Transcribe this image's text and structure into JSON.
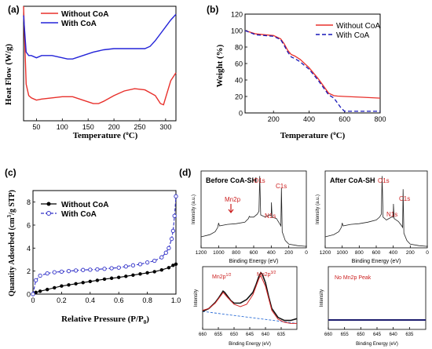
{
  "panels": {
    "a": {
      "label": "(a)",
      "ylabel": "Heat Flow (W/g)",
      "xlabel_main": "Temperature (",
      "xlabel_sup": "o",
      "xlabel_end": "C)",
      "legend": [
        "Without CoA",
        "With CoA"
      ]
    },
    "b": {
      "label": "(b)",
      "ylabel": "Weight (%)",
      "xlabel_main": "Temperature (",
      "xlabel_sup": "o",
      "xlabel_end": "C)",
      "legend": [
        "Without CoA",
        "With CoA"
      ]
    },
    "c": {
      "label": "(c)",
      "ylabel_main": "Quantity Adsorbed (cm",
      "ylabel_sup": "3",
      "ylabel_end": "/g STP)",
      "xlabel_main": "Relative Pressure (P/P",
      "xlabel_sub": "0",
      "xlabel_end": ")",
      "legend": [
        "Without CoA",
        "With CoA"
      ]
    },
    "d": {
      "label": "(d)",
      "before_title": "Before CoA-SH",
      "after_title": "After CoA-SH",
      "ylabel": "Intensity (a.u.)",
      "xlabel": "Binding Energy (eV)",
      "peaks_before": [
        "Mn2p",
        "O1s",
        "N1s",
        "C1s"
      ],
      "peaks_after": [
        "O1s",
        "N1s",
        "C1s"
      ],
      "mn_labels": [
        "Mn2p",
        "1/2",
        "Mn2p",
        "3/2"
      ],
      "no_peak": "No Mn2p Peak",
      "hr_ylabel": "Intensity",
      "hr_xlabel": "Binding Energy (eV)"
    }
  },
  "chart_data": [
    {
      "id": "a",
      "type": "line",
      "xlim": [
        25,
        320
      ],
      "xticks": [
        50,
        100,
        150,
        200,
        250,
        300
      ],
      "yticks": [],
      "colors": [
        "#e8302b",
        "#2323d8"
      ],
      "series": [
        {
          "name": "Without CoA",
          "x": [
            25,
            30,
            35,
            40,
            50,
            60,
            80,
            100,
            120,
            140,
            160,
            170,
            180,
            200,
            220,
            240,
            260,
            280,
            290,
            296,
            300,
            310,
            320
          ],
          "y": [
            1.0,
            0.32,
            0.22,
            0.2,
            0.18,
            0.19,
            0.2,
            0.21,
            0.21,
            0.18,
            0.15,
            0.15,
            0.17,
            0.22,
            0.26,
            0.28,
            0.27,
            0.22,
            0.15,
            0.14,
            0.2,
            0.35,
            0.42
          ]
        },
        {
          "name": "With CoA",
          "x": [
            25,
            30,
            35,
            40,
            50,
            60,
            80,
            100,
            110,
            120,
            140,
            160,
            180,
            200,
            220,
            240,
            260,
            270,
            280,
            290,
            300,
            310,
            320
          ],
          "y": [
            0.92,
            0.6,
            0.57,
            0.57,
            0.55,
            0.57,
            0.57,
            0.55,
            0.54,
            0.54,
            0.57,
            0.6,
            0.62,
            0.63,
            0.63,
            0.63,
            0.63,
            0.65,
            0.7,
            0.76,
            0.82,
            0.88,
            0.93
          ]
        }
      ]
    },
    {
      "id": "b",
      "type": "line",
      "xlim": [
        40,
        800
      ],
      "ylim": [
        0,
        120
      ],
      "xticks": [
        200,
        400,
        600,
        800
      ],
      "yticks": [
        0,
        20,
        40,
        60,
        80,
        100,
        120
      ],
      "colors": [
        "#e8302b",
        "#1717b8"
      ],
      "series": [
        {
          "name": "Without CoA",
          "x": [
            40,
            100,
            150,
            200,
            240,
            260,
            280,
            300,
            320,
            350,
            400,
            450,
            480,
            510,
            540,
            560,
            600,
            700,
            800
          ],
          "y": [
            100,
            96,
            95,
            94,
            90,
            84,
            76,
            71,
            69,
            65,
            55,
            42,
            33,
            24,
            21,
            20.5,
            20,
            19,
            18
          ]
        },
        {
          "name": "With CoA",
          "x": [
            40,
            100,
            150,
            200,
            240,
            260,
            280,
            300,
            320,
            350,
            400,
            450,
            480,
            510,
            540,
            560,
            580,
            600,
            700,
            800
          ],
          "y": [
            100,
            95,
            94,
            93,
            89,
            82,
            74,
            68,
            66,
            62,
            53,
            40,
            31,
            22,
            18,
            12,
            6,
            2,
            2,
            2
          ]
        }
      ]
    },
    {
      "id": "c",
      "type": "line",
      "xlim": [
        0,
        1
      ],
      "ylim": [
        0,
        9
      ],
      "xticks": [
        0,
        0.2,
        0.4,
        0.6,
        0.8,
        1.0
      ],
      "yticks": [
        0,
        2,
        4,
        6,
        8
      ],
      "colors": [
        "#000000",
        "#3030c8"
      ],
      "series": [
        {
          "name": "Without CoA",
          "x": [
            0,
            0.02,
            0.05,
            0.1,
            0.15,
            0.2,
            0.25,
            0.3,
            0.35,
            0.4,
            0.45,
            0.5,
            0.55,
            0.6,
            0.65,
            0.7,
            0.75,
            0.8,
            0.85,
            0.9,
            0.95,
            0.98,
            1.0
          ],
          "y": [
            0.0,
            0.15,
            0.25,
            0.4,
            0.55,
            0.7,
            0.8,
            0.9,
            1.0,
            1.1,
            1.2,
            1.3,
            1.38,
            1.45,
            1.55,
            1.65,
            1.75,
            1.85,
            1.95,
            2.1,
            2.3,
            2.5,
            2.6
          ]
        },
        {
          "name": "With CoA",
          "x": [
            0,
            0.02,
            0.05,
            0.1,
            0.15,
            0.2,
            0.25,
            0.3,
            0.35,
            0.4,
            0.45,
            0.5,
            0.55,
            0.6,
            0.65,
            0.7,
            0.75,
            0.8,
            0.85,
            0.9,
            0.93,
            0.95,
            0.97,
            0.98,
            0.99,
            1.0
          ],
          "y": [
            0.0,
            1.2,
            1.6,
            1.8,
            1.9,
            1.95,
            2.0,
            2.05,
            2.1,
            2.12,
            2.15,
            2.2,
            2.25,
            2.3,
            2.4,
            2.5,
            2.6,
            2.75,
            2.9,
            3.2,
            3.6,
            4.0,
            4.8,
            5.5,
            6.8,
            8.5
          ]
        }
      ]
    },
    {
      "id": "d-before",
      "type": "line",
      "xlim": [
        1200,
        0
      ],
      "xticks": [
        1200,
        1000,
        800,
        600,
        400,
        200,
        0
      ],
      "series": [
        {
          "x": [
            1200,
            1100,
            1040,
            1010,
            1000,
            990,
            900,
            800,
            700,
            660,
            650,
            642,
            600,
            560,
            540,
            531,
            520,
            470,
            420,
            400,
            398,
            390,
            340,
            300,
            290,
            284,
            275,
            240,
            200,
            100,
            0
          ],
          "y": [
            0.15,
            0.18,
            0.22,
            0.28,
            0.34,
            0.3,
            0.32,
            0.33,
            0.35,
            0.4,
            0.43,
            0.42,
            0.42,
            0.46,
            0.5,
            0.98,
            0.45,
            0.42,
            0.45,
            0.44,
            0.62,
            0.42,
            0.4,
            0.32,
            0.3,
            0.82,
            0.22,
            0.1,
            0.05,
            0.03,
            0.02
          ]
        }
      ]
    },
    {
      "id": "d-after",
      "type": "line",
      "xlim": [
        1200,
        0
      ],
      "xticks": [
        1200,
        1000,
        800,
        600,
        400,
        200,
        0
      ],
      "series": [
        {
          "x": [
            1200,
            1100,
            1040,
            1010,
            1000,
            990,
            900,
            800,
            700,
            600,
            560,
            540,
            531,
            520,
            480,
            420,
            400,
            398,
            390,
            340,
            300,
            290,
            284,
            275,
            240,
            200,
            100,
            0
          ],
          "y": [
            0.15,
            0.18,
            0.22,
            0.28,
            0.34,
            0.3,
            0.32,
            0.33,
            0.35,
            0.38,
            0.42,
            0.46,
            0.98,
            0.42,
            0.38,
            0.42,
            0.42,
            0.6,
            0.4,
            0.36,
            0.3,
            0.28,
            0.8,
            0.2,
            0.1,
            0.05,
            0.03,
            0.02
          ]
        }
      ]
    },
    {
      "id": "d-mn-before",
      "type": "line",
      "xlim": [
        660,
        630
      ],
      "xticks": [
        660,
        655,
        650,
        645,
        640,
        635
      ],
      "series": [
        {
          "name": "data",
          "x": [
            660,
            658,
            656,
            655,
            654,
            653.5,
            653,
            652,
            651,
            650,
            648,
            646,
            644,
            643,
            642,
            641.5,
            641,
            640,
            639,
            638,
            636,
            634,
            632,
            630
          ],
          "y": [
            0.3,
            0.35,
            0.45,
            0.52,
            0.6,
            0.64,
            0.62,
            0.55,
            0.48,
            0.44,
            0.44,
            0.5,
            0.62,
            0.75,
            0.9,
            0.95,
            0.92,
            0.78,
            0.55,
            0.35,
            0.2,
            0.15,
            0.15,
            0.18
          ]
        },
        {
          "name": "fit",
          "x": [
            660,
            658,
            656,
            654,
            653.5,
            652,
            650,
            648,
            646,
            644,
            642,
            641.5,
            640,
            638,
            636,
            634,
            632,
            630
          ],
          "y": [
            0.32,
            0.35,
            0.44,
            0.58,
            0.62,
            0.53,
            0.42,
            0.38,
            0.42,
            0.58,
            0.86,
            0.9,
            0.72,
            0.32,
            0.17,
            0.12,
            0.1,
            0.1
          ]
        },
        {
          "name": "baseline",
          "x": [
            660,
            630
          ],
          "y": [
            0.3,
            0.1
          ]
        }
      ]
    },
    {
      "id": "d-mn-after",
      "type": "line",
      "xlim": [
        660,
        630
      ],
      "xticks": [
        660,
        655,
        650,
        645,
        640,
        635
      ],
      "series": [
        {
          "x": [
            660,
            630
          ],
          "y": [
            0.15,
            0.15
          ]
        }
      ]
    }
  ]
}
